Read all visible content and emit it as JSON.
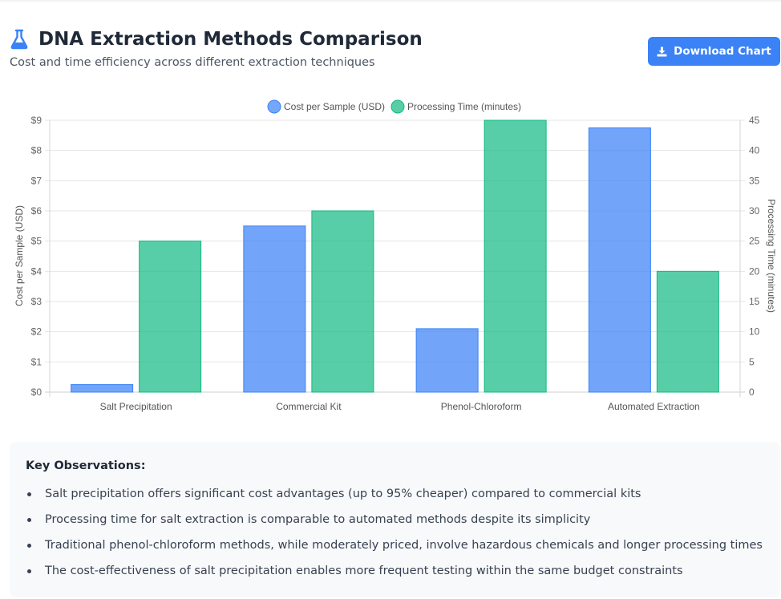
{
  "header": {
    "title": "DNA Extraction Methods Comparison",
    "subtitle": "Cost and time efficiency across different extraction techniques",
    "download_label": "Download Chart"
  },
  "colors": {
    "cost": "#3b82f6",
    "time": "#10b981",
    "accent": "#3b82f6"
  },
  "chart_data": {
    "type": "bar",
    "categories": [
      "Salt Precipitation",
      "Commercial Kit",
      "Phenol-Chloroform",
      "Automated Extraction"
    ],
    "series": [
      {
        "name": "Cost per Sample (USD)",
        "axis": "left",
        "values": [
          0.25,
          5.5,
          2.1,
          8.75
        ]
      },
      {
        "name": "Processing Time (minutes)",
        "axis": "right",
        "values": [
          25,
          30,
          45,
          20
        ]
      }
    ],
    "ylabel": "Cost per Sample (USD)",
    "y2label": "Processing Time (minutes)",
    "ylim": [
      0,
      9
    ],
    "y2lim": [
      0,
      45
    ],
    "yticks": [
      "$0",
      "$1",
      "$2",
      "$3",
      "$4",
      "$5",
      "$6",
      "$7",
      "$8",
      "$9"
    ],
    "y2ticks": [
      "0",
      "5",
      "10",
      "15",
      "20",
      "25",
      "30",
      "35",
      "40",
      "45"
    ],
    "legend_position": "top-center",
    "grid": true
  },
  "observations": {
    "title": "Key Observations:",
    "items": [
      "Salt precipitation offers significant cost advantages (up to 95% cheaper) compared to commercial kits",
      "Processing time for salt extraction is comparable to automated methods despite its simplicity",
      "Traditional phenol-chloroform methods, while moderately priced, involve hazardous chemicals and longer processing times",
      "The cost-effectiveness of salt precipitation enables more frequent testing within the same budget constraints"
    ]
  }
}
